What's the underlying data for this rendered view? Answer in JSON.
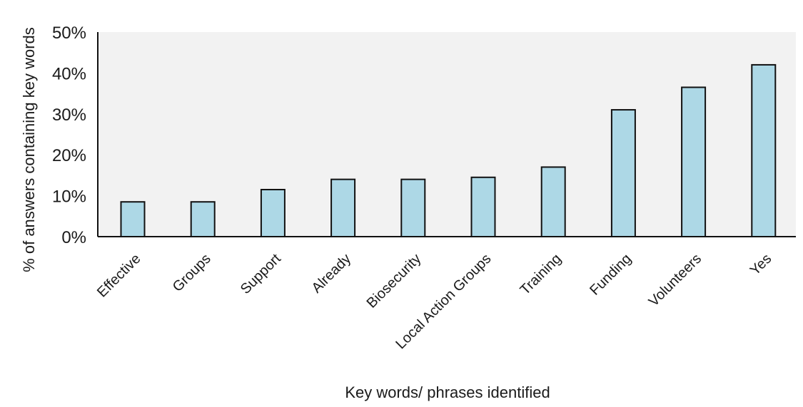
{
  "chart_data": {
    "type": "bar",
    "title": "",
    "xlabel": "Key words/ phrases identified",
    "ylabel": "% of answers containing  key words",
    "categories": [
      "Effective",
      "Groups",
      "Support",
      "Already",
      "Biosecurity",
      "Local Action Groups",
      "Training",
      "Funding",
      "Volunteers",
      "Yes"
    ],
    "values": [
      8.5,
      8.5,
      11.5,
      14,
      14,
      14.5,
      17,
      31,
      36.5,
      42
    ],
    "ylim": [
      0,
      50
    ],
    "yticks": [
      "0%",
      "10%",
      "20%",
      "30%",
      "40%",
      "50%"
    ],
    "grid": false,
    "legend": "none",
    "colors": {
      "bar_fill": "#add8e6",
      "bar_stroke": "#111111",
      "plot_background": "#f2f2f2",
      "axis": "#111111"
    }
  }
}
